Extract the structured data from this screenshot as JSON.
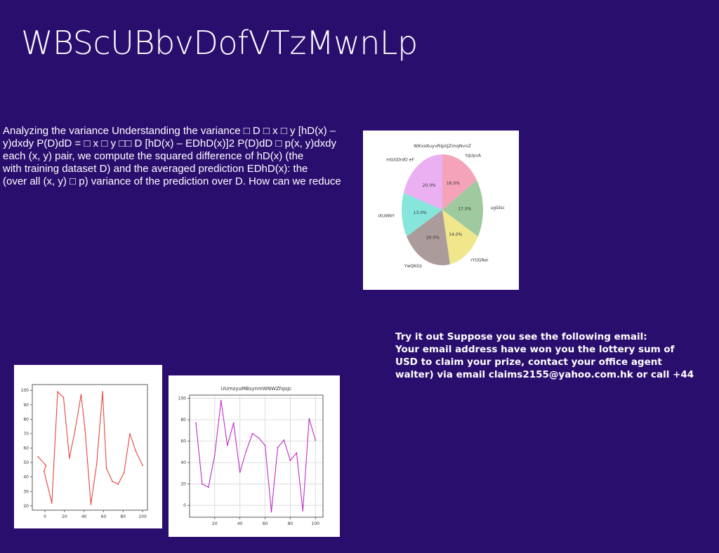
{
  "slide": {
    "title": "WBScUBbvDofVTzMwnLp",
    "paragraph_lines": [
      "Analyzing the variance Understanding the variance □ D □ x □ y [hD(x) –",
      "y)dxdy P(D)dD = □ x □ y □□ D [hD(x) – EDhD(x)]2 P(D)dD □ p(x, y)dxdy",
      "each (x, y) pair, we compute the squared difference of hD(x) (the",
      "with training dataset D) and the averaged prediction EDhD(x): the",
      "(over all (x, y) □ p) variance of the prediction over D. How can we reduce"
    ],
    "email_lines": [
      "Try it out Suppose you see the following email:",
      "Your email address have won you the lottery sum of",
      "USD to claim your prize, contact your office agent",
      "walter) via email claims2155@yahoo.com.hk or call +44"
    ]
  },
  "chart_data": [
    {
      "type": "pie",
      "title": "WKxsKuyvRIpiiJZmqNvnZ",
      "labels": [
        "tqUpvA",
        "ugGlsc",
        "rYUGNai",
        "YwQKGz",
        "iXUWbY",
        "mGGDrdO eF"
      ],
      "values": [
        16.0,
        17.0,
        14.0,
        20.0,
        13.0,
        20.0
      ],
      "value_labels": [
        "16.0%",
        "17.0%",
        "14.0%",
        "20.0%",
        "13.0%",
        "20.0%"
      ],
      "colors": [
        "#f5a3b8",
        "#9fc99f",
        "#f0e68c",
        "#ac9b9b",
        "#86e6dc",
        "#ebb0f2"
      ]
    },
    {
      "type": "line",
      "title": "",
      "x": [
        0,
        5,
        10,
        15,
        20,
        25,
        30,
        35,
        40,
        45,
        50,
        55,
        60,
        65,
        70,
        75,
        80,
        85,
        90,
        95,
        100
      ],
      "y": [
        54,
        50,
        45,
        22,
        99,
        95,
        53,
        73,
        97,
        73,
        21,
        49,
        99,
        46,
        37,
        35,
        43,
        70,
        58,
        48,
        48
      ],
      "x_draw": [
        -7,
        1,
        -1,
        7,
        13,
        19,
        25,
        31,
        37,
        41,
        47,
        53,
        59,
        63,
        69,
        75,
        81,
        87,
        93,
        100
      ],
      "y_draw": [
        54,
        48,
        44,
        22,
        99,
        95,
        53,
        73,
        97,
        73,
        21,
        49,
        99,
        46,
        37,
        35,
        43,
        70,
        58,
        48
      ],
      "xlim": [
        -13,
        105
      ],
      "ylim": [
        17,
        104
      ],
      "xticks": [
        0,
        20,
        40,
        60,
        80,
        100
      ],
      "yticks": [
        20,
        30,
        40,
        50,
        60,
        70,
        80,
        90,
        100
      ],
      "color": "#e8453c",
      "grid": false
    },
    {
      "type": "line",
      "title": "UUmzyuMBsynmWNWZfsJsJc",
      "x": [
        5,
        10,
        15,
        20,
        25,
        30,
        35,
        40,
        45,
        50,
        55,
        60,
        65,
        70,
        75,
        80,
        85,
        90,
        95,
        100
      ],
      "y": [
        77,
        20,
        17,
        47,
        98,
        56,
        77,
        31,
        51,
        67,
        63,
        56,
        -6,
        54,
        61,
        42,
        49,
        -5,
        81,
        61
      ],
      "xlim": [
        0,
        106
      ],
      "ylim": [
        -11,
        103
      ],
      "xticks": [
        20,
        40,
        60,
        80,
        100
      ],
      "yticks": [
        0,
        20,
        40,
        60,
        80,
        100
      ],
      "color": "#c02bc6",
      "grid": true
    }
  ]
}
